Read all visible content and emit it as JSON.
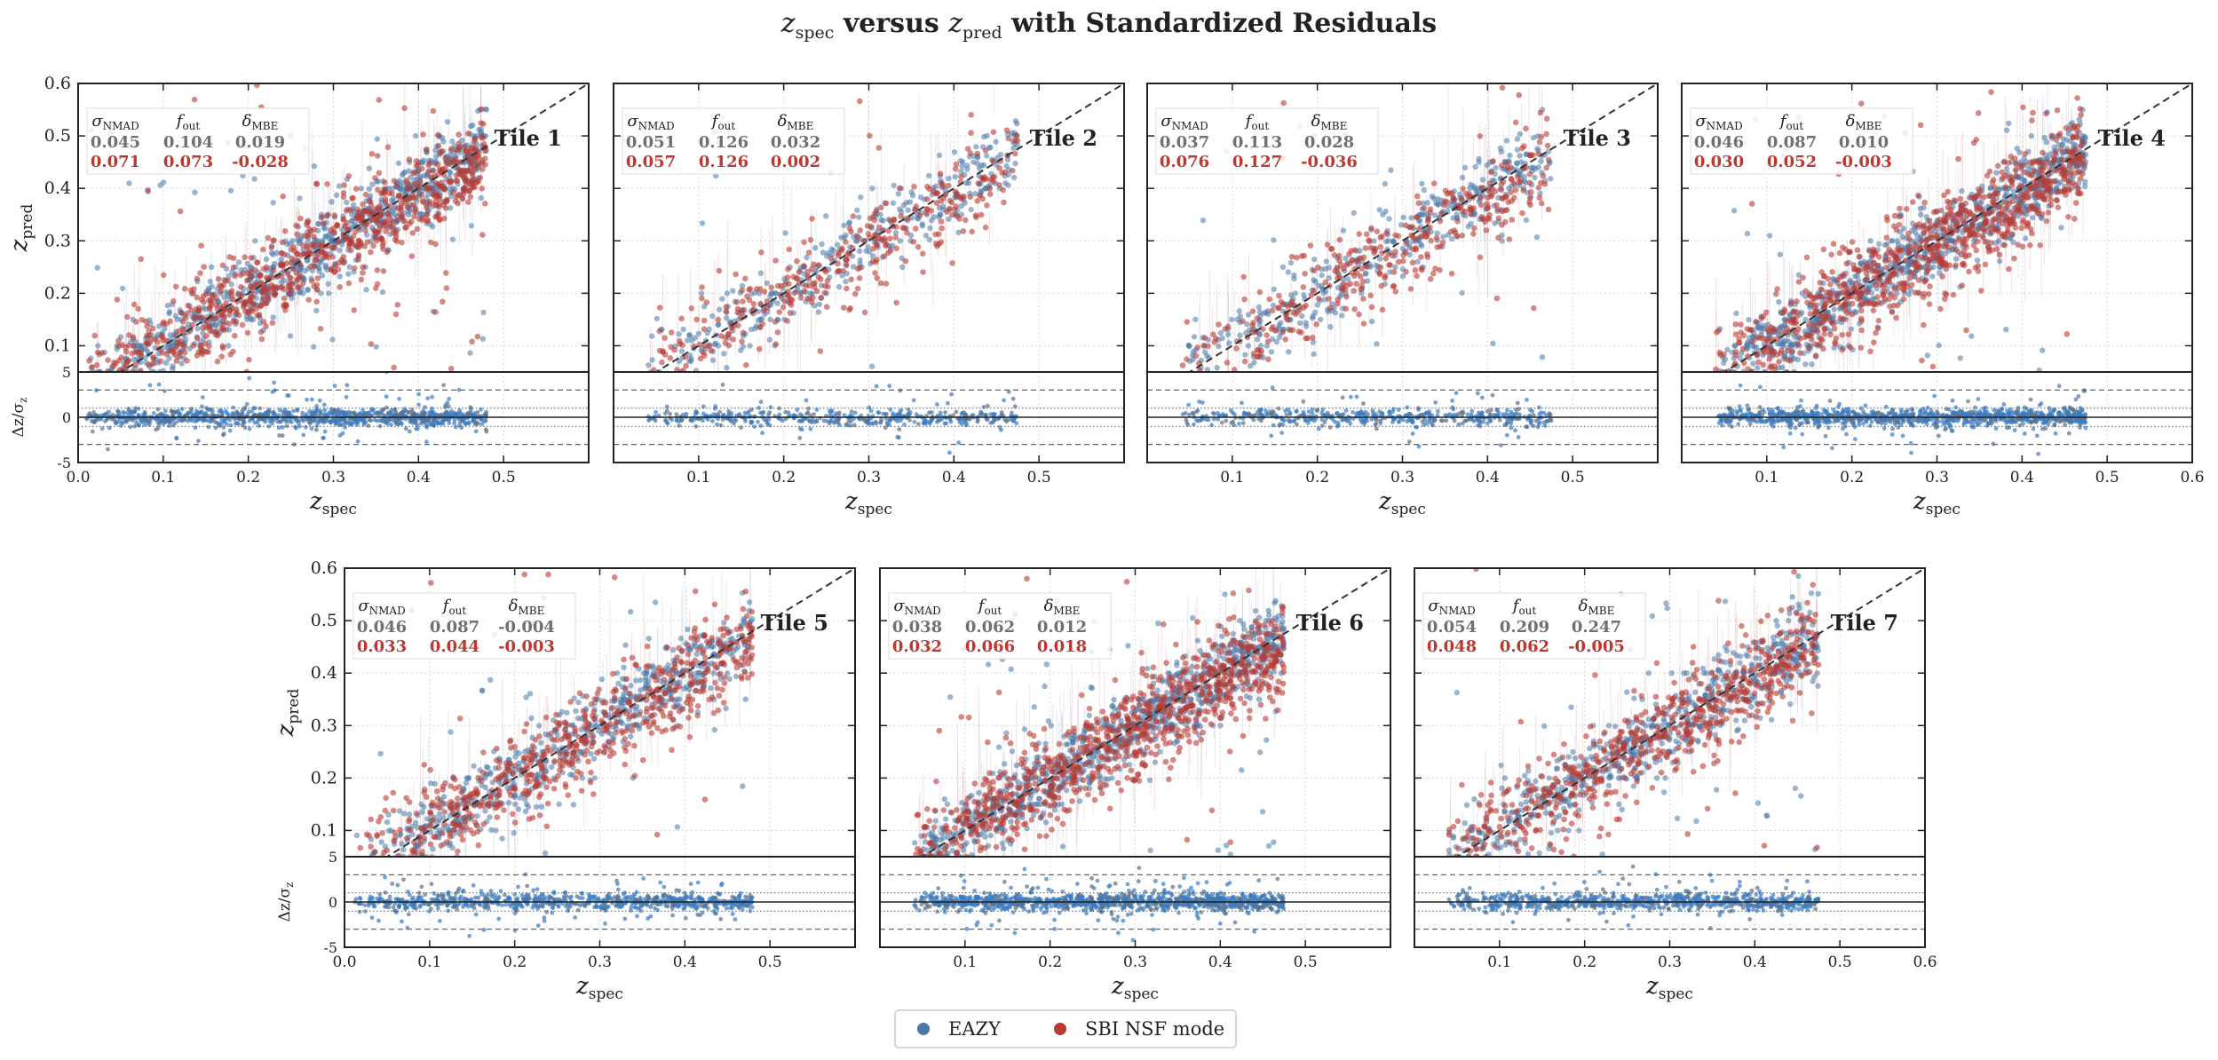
{
  "figure": {
    "title_main": "z",
    "title_sub1": "spec",
    "title_mid": " versus ",
    "title_main2": "z",
    "title_sub2": "pred",
    "title_tail": " with Standardized Residuals"
  },
  "legend": {
    "items": [
      {
        "label": "EAZY",
        "color": "#4a78a8"
      },
      {
        "label": "SBI NSF mode",
        "color": "#b83a33"
      }
    ]
  },
  "colors": {
    "eazy": "#4a78a8",
    "eazy_resid": "#3a7cc2",
    "sbi": "#b83a33",
    "stat_gray": "#707070",
    "stat_red": "#b83a33"
  },
  "axis_labels": {
    "xlabel_main": "z",
    "xlabel_sub": "spec",
    "ylabel_main": "z",
    "ylabel_sub": "pred",
    "resid_label": "Δz/σ",
    "resid_label_sub": "z"
  },
  "stat_headers": [
    {
      "main": "σ",
      "sub": "NMAD"
    },
    {
      "main": "f",
      "sub": "out"
    },
    {
      "main": "δ",
      "sub": "MBE"
    }
  ],
  "chart_data": [
    {
      "type": "scatter",
      "title": "Tile 1",
      "xlim": [
        0.0,
        0.6
      ],
      "ylim": [
        0.05,
        0.6
      ],
      "resid_ylim": [
        -5,
        5
      ],
      "xticks": [
        "0.0",
        "0.1",
        "0.2",
        "0.3",
        "0.4",
        "0.5"
      ],
      "yticks": [
        "0.1",
        "0.2",
        "0.3",
        "0.4",
        "0.5",
        "0.6"
      ],
      "resid_yticks": [
        "5",
        "0",
        "-5"
      ],
      "stats": {
        "eazy": [
          "0.045",
          "0.104",
          "0.019"
        ],
        "sbi": [
          "0.071",
          "0.073",
          "-0.028"
        ]
      },
      "series": [
        {
          "name": "EAZY"
        },
        {
          "name": "SBI NSF mode"
        }
      ]
    },
    {
      "type": "scatter",
      "title": "Tile 2",
      "xlim": [
        0.0,
        0.6
      ],
      "ylim": [
        0.05,
        0.6
      ],
      "resid_ylim": [
        -5,
        5
      ],
      "xticks": [
        "0.1",
        "0.2",
        "0.3",
        "0.4",
        "0.5"
      ],
      "yticks": [],
      "resid_yticks": [],
      "stats": {
        "eazy": [
          "0.051",
          "0.126",
          "0.032"
        ],
        "sbi": [
          "0.057",
          "0.126",
          "0.002"
        ]
      },
      "series": [
        {
          "name": "EAZY"
        },
        {
          "name": "SBI NSF mode"
        }
      ]
    },
    {
      "type": "scatter",
      "title": "Tile 3",
      "xlim": [
        0.0,
        0.6
      ],
      "ylim": [
        0.05,
        0.6
      ],
      "resid_ylim": [
        -5,
        5
      ],
      "xticks": [
        "0.1",
        "0.2",
        "0.3",
        "0.4",
        "0.5"
      ],
      "yticks": [],
      "resid_yticks": [],
      "stats": {
        "eazy": [
          "0.037",
          "0.113",
          "0.028"
        ],
        "sbi": [
          "0.076",
          "0.127",
          "-0.036"
        ]
      },
      "series": [
        {
          "name": "EAZY"
        },
        {
          "name": "SBI NSF mode"
        }
      ]
    },
    {
      "type": "scatter",
      "title": "Tile 4",
      "xlim": [
        0.0,
        0.6
      ],
      "ylim": [
        0.05,
        0.6
      ],
      "resid_ylim": [
        -5,
        5
      ],
      "xticks": [
        "0.1",
        "0.2",
        "0.3",
        "0.4",
        "0.5",
        "0.6"
      ],
      "yticks": [],
      "resid_yticks": [],
      "stats": {
        "eazy": [
          "0.046",
          "0.087",
          "0.010"
        ],
        "sbi": [
          "0.030",
          "0.052",
          "-0.003"
        ]
      },
      "series": [
        {
          "name": "EAZY"
        },
        {
          "name": "SBI NSF mode"
        }
      ]
    },
    {
      "type": "scatter",
      "title": "Tile 5",
      "xlim": [
        0.0,
        0.6
      ],
      "ylim": [
        0.05,
        0.6
      ],
      "resid_ylim": [
        -5,
        5
      ],
      "xticks": [
        "0.0",
        "0.1",
        "0.2",
        "0.3",
        "0.4",
        "0.5"
      ],
      "yticks": [
        "0.1",
        "0.2",
        "0.3",
        "0.4",
        "0.5",
        "0.6"
      ],
      "resid_yticks": [
        "5",
        "0",
        "-5"
      ],
      "stats": {
        "eazy": [
          "0.046",
          "0.087",
          "-0.004"
        ],
        "sbi": [
          "0.033",
          "0.044",
          "-0.003"
        ]
      },
      "series": [
        {
          "name": "EAZY"
        },
        {
          "name": "SBI NSF mode"
        }
      ]
    },
    {
      "type": "scatter",
      "title": "Tile 6",
      "xlim": [
        0.0,
        0.6
      ],
      "ylim": [
        0.05,
        0.6
      ],
      "resid_ylim": [
        -5,
        5
      ],
      "xticks": [
        "0.1",
        "0.2",
        "0.3",
        "0.4",
        "0.5"
      ],
      "yticks": [],
      "resid_yticks": [],
      "stats": {
        "eazy": [
          "0.038",
          "0.062",
          "0.012"
        ],
        "sbi": [
          "0.032",
          "0.066",
          "0.018"
        ]
      },
      "series": [
        {
          "name": "EAZY"
        },
        {
          "name": "SBI NSF mode"
        }
      ]
    },
    {
      "type": "scatter",
      "title": "Tile 7",
      "xlim": [
        0.0,
        0.6
      ],
      "ylim": [
        0.05,
        0.6
      ],
      "resid_ylim": [
        -5,
        5
      ],
      "xticks": [
        "0.1",
        "0.2",
        "0.3",
        "0.4",
        "0.5",
        "0.6"
      ],
      "yticks": [],
      "resid_yticks": [],
      "stats": {
        "eazy": [
          "0.054",
          "0.209",
          "0.247"
        ],
        "sbi": [
          "0.048",
          "0.062",
          "-0.005"
        ]
      },
      "series": [
        {
          "name": "EAZY"
        },
        {
          "name": "SBI NSF mode"
        }
      ]
    }
  ]
}
